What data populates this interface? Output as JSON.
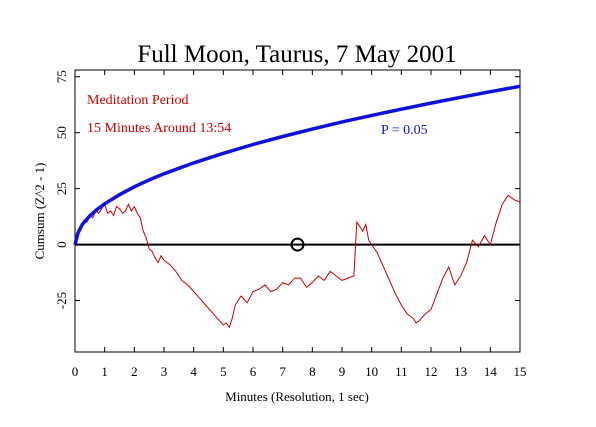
{
  "chart_data": {
    "type": "line",
    "title": "Full Moon, Taurus, 7 May 2001",
    "xlabel": "Minutes (Resolution, 1 sec)",
    "ylabel": "Cumsum (Z^2 - 1)",
    "xlim": [
      0,
      15
    ],
    "ylim": [
      -48,
      78
    ],
    "x_ticks": [
      0,
      1,
      2,
      3,
      4,
      5,
      6,
      7,
      8,
      9,
      10,
      11,
      12,
      13,
      14,
      15
    ],
    "y_ticks": [
      -25,
      0,
      25,
      50,
      75
    ],
    "y_tick_labels": [
      "-25",
      "0",
      "25",
      "50",
      "75"
    ],
    "grid": false,
    "annotations": [
      "Meditation Period",
      "15 Minutes Around 13:54"
    ],
    "reference_lines": [
      {
        "axis": "y",
        "value": 0
      }
    ],
    "marker": {
      "shape": "circle",
      "x": 7.5,
      "y": 0
    },
    "series": [
      {
        "name": "P = 0.05",
        "color": "#1010e0",
        "x": [
          0,
          0.1,
          0.25,
          0.5,
          0.75,
          1,
          1.5,
          2,
          2.5,
          3,
          3.5,
          4,
          5,
          6,
          7,
          8,
          9,
          10,
          11,
          12,
          13,
          14,
          15
        ],
        "values": [
          0,
          5.2,
          9.1,
          12.8,
          15.8,
          18.2,
          22.3,
          25.8,
          28.9,
          31.6,
          34.1,
          36.5,
          40.8,
          44.7,
          48.3,
          51.6,
          54.8,
          57.7,
          60.5,
          63.2,
          65.8,
          68.3,
          70.7
        ]
      },
      {
        "name": "cumsum",
        "color": "#cc0000",
        "x": [
          0,
          0.1,
          0.2,
          0.3,
          0.4,
          0.5,
          0.6,
          0.7,
          0.8,
          0.9,
          1.0,
          1.1,
          1.2,
          1.3,
          1.4,
          1.5,
          1.6,
          1.7,
          1.8,
          1.9,
          2.0,
          2.1,
          2.2,
          2.3,
          2.4,
          2.5,
          2.6,
          2.7,
          2.8,
          2.9,
          3.0,
          3.2,
          3.4,
          3.6,
          3.8,
          4.0,
          4.2,
          4.4,
          4.6,
          4.8,
          5.0,
          5.1,
          5.2,
          5.3,
          5.4,
          5.5,
          5.6,
          5.8,
          6.0,
          6.2,
          6.4,
          6.6,
          6.8,
          7.0,
          7.2,
          7.4,
          7.6,
          7.8,
          8.0,
          8.2,
          8.4,
          8.6,
          8.8,
          9.0,
          9.2,
          9.4,
          9.5,
          9.6,
          9.7,
          9.8,
          9.9,
          10.0,
          10.2,
          10.4,
          10.6,
          10.8,
          11.0,
          11.2,
          11.4,
          11.5,
          11.6,
          11.8,
          12.0,
          12.2,
          12.4,
          12.6,
          12.8,
          13.0,
          13.2,
          13.4,
          13.6,
          13.8,
          14.0,
          14.2,
          14.4,
          14.6,
          14.8,
          15.0
        ],
        "values": [
          0,
          5,
          8,
          11,
          10,
          13,
          12,
          15,
          14,
          16,
          18,
          14,
          15,
          13,
          17,
          16,
          14,
          15,
          18,
          15,
          17,
          14,
          12,
          6,
          3,
          -2,
          -3,
          -6,
          -8,
          -5,
          -7,
          -9,
          -12,
          -16,
          -18,
          -21,
          -24,
          -27,
          -30,
          -33,
          -36,
          -35,
          -37,
          -33,
          -27,
          -25,
          -23,
          -26,
          -21,
          -20,
          -18,
          -21,
          -20,
          -17,
          -18,
          -15,
          -15,
          -19,
          -17,
          -14,
          -16,
          -12,
          -14,
          -16,
          -15,
          -14,
          10,
          8,
          6,
          9,
          2,
          0,
          -4,
          -10,
          -16,
          -22,
          -27,
          -31,
          -33,
          -35,
          -34,
          -31,
          -29,
          -22,
          -15,
          -10,
          -18,
          -14,
          -8,
          2,
          -1,
          4,
          0,
          10,
          18,
          22,
          20,
          19
        ]
      }
    ]
  }
}
